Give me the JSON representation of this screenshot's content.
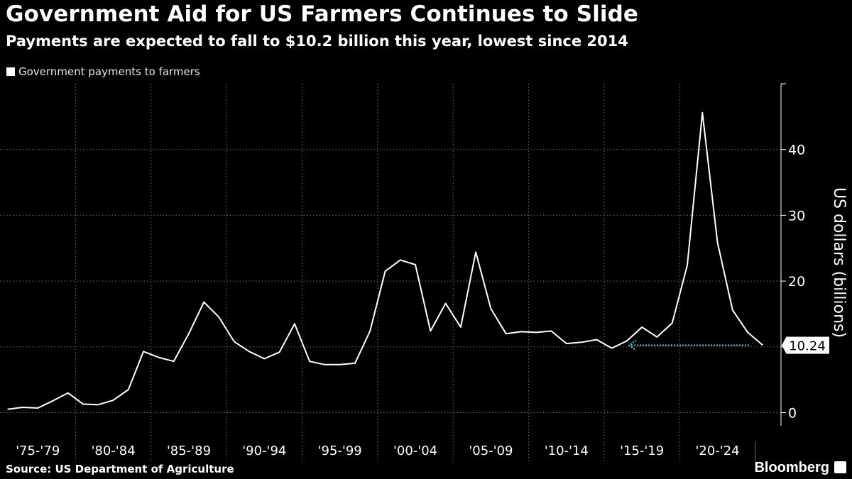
{
  "header": {
    "title": "Government Aid for US Farmers Continues to Slide",
    "subtitle": "Payments are expected to fall to $10.2 billion this year, lowest since 2014"
  },
  "footer": {
    "source": "Source: US Department of Agriculture",
    "brand": "Bloomberg"
  },
  "colors": {
    "background": "#000000",
    "line": "#ffffff",
    "grid": "#6e6e6e",
    "annotation_arrow": "#5ec8d4"
  },
  "chart_data": {
    "type": "line",
    "title": "Government Aid for US Farmers Continues to Slide",
    "subtitle": "Payments are expected to fall to $10.2 billion this year, lowest since 2014",
    "xlabel": "",
    "ylabel": "US dollars (billions)",
    "legend": {
      "placement": "top-left",
      "entries": [
        "Government payments to farmers"
      ]
    },
    "grid": true,
    "xlim": [
      1975,
      2025
    ],
    "ylim": [
      -2,
      50
    ],
    "yticks": [
      0,
      10,
      20,
      30,
      40
    ],
    "ytick_labels": [
      "0",
      "",
      "20",
      "30",
      "40"
    ],
    "x_groups": [
      {
        "label": "'75-'79",
        "start": 1975,
        "end": 1979
      },
      {
        "label": "'80-'84",
        "start": 1980,
        "end": 1984
      },
      {
        "label": "'85-'89",
        "start": 1985,
        "end": 1989
      },
      {
        "label": "'90-'94",
        "start": 1990,
        "end": 1994
      },
      {
        "label": "'95-'99",
        "start": 1995,
        "end": 1999
      },
      {
        "label": "'00-'04",
        "start": 2000,
        "end": 2004
      },
      {
        "label": "'05-'09",
        "start": 2005,
        "end": 2009
      },
      {
        "label": "'10-'14",
        "start": 2010,
        "end": 2014
      },
      {
        "label": "'15-'19",
        "start": 2015,
        "end": 2019
      },
      {
        "label": "'20-'24",
        "start": 2020,
        "end": 2024
      }
    ],
    "series": [
      {
        "name": "Government payments to farmers",
        "color": "#ffffff",
        "x": [
          1975,
          1976,
          1977,
          1978,
          1979,
          1980,
          1981,
          1982,
          1983,
          1984,
          1985,
          1986,
          1987,
          1988,
          1989,
          1990,
          1991,
          1992,
          1993,
          1994,
          1995,
          1996,
          1997,
          1998,
          1999,
          2000,
          2001,
          2002,
          2003,
          2004,
          2005,
          2006,
          2007,
          2008,
          2009,
          2010,
          2011,
          2012,
          2013,
          2014,
          2015,
          2016,
          2017,
          2018,
          2019,
          2020,
          2021,
          2022,
          2023,
          2024,
          2025
        ],
        "y": [
          0.5,
          0.8,
          0.7,
          1.8,
          3.0,
          1.3,
          1.2,
          1.9,
          3.5,
          9.3,
          8.4,
          7.8,
          12.0,
          16.8,
          14.5,
          10.8,
          9.3,
          8.2,
          9.2,
          13.5,
          7.8,
          7.3,
          7.3,
          7.5,
          12.4,
          21.5,
          23.2,
          22.5,
          12.4,
          16.6,
          13.0,
          24.4,
          15.8,
          12.0,
          12.3,
          12.2,
          12.4,
          10.5,
          10.7,
          11.1,
          9.8,
          10.9,
          13.0,
          11.5,
          13.6,
          22.4,
          45.6,
          25.9,
          15.6,
          12.2,
          10.24
        ]
      }
    ],
    "annotations": [
      {
        "text": "10.24",
        "x": 2025,
        "y": 10.24,
        "style": "dotted-arrow-to-value-label"
      }
    ]
  }
}
